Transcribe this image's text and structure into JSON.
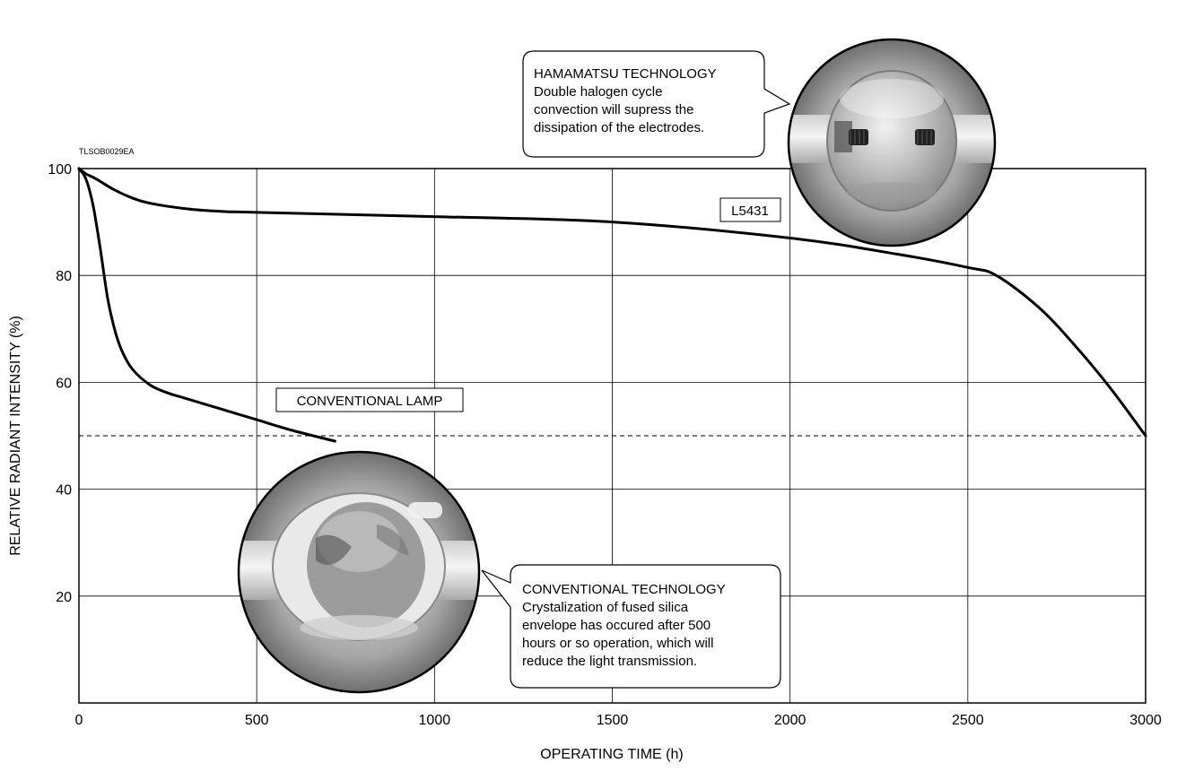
{
  "chart_data": {
    "type": "line",
    "code": "TLSOB0029EA",
    "xlabel": "OPERATING TIME (h)",
    "ylabel": "RELATIVE RADIANT INTENSITY (%)",
    "xlim": [
      0,
      3000
    ],
    "ylim": [
      0,
      100
    ],
    "x_ticks": [
      "0",
      "500",
      "1000",
      "1500",
      "2000",
      "2500",
      "3000"
    ],
    "y_ticks": [
      "20",
      "40",
      "60",
      "80",
      "100"
    ],
    "grid": true,
    "reference_line": {
      "y": 50,
      "style": "dashed"
    },
    "series": [
      {
        "name": "L5431",
        "x": [
          0,
          20,
          50,
          100,
          150,
          200,
          300,
          400,
          500,
          1000,
          1500,
          2000,
          2300,
          2500,
          2580,
          2700,
          2800,
          2900,
          3000
        ],
        "y": [
          100,
          99,
          98,
          96,
          94.5,
          93.5,
          92.5,
          92,
          91.8,
          91,
          90,
          87,
          84,
          81.5,
          80,
          74,
          67,
          59,
          50
        ]
      },
      {
        "name": "CONVENTIONAL LAMP",
        "x": [
          0,
          20,
          40,
          60,
          80,
          100,
          120,
          150,
          200,
          250,
          300,
          400,
          500,
          600,
          720
        ],
        "y": [
          100,
          98,
          93,
          85,
          76,
          70,
          66,
          62.5,
          59.5,
          58,
          57,
          55,
          53,
          51,
          49
        ]
      }
    ],
    "annotations": {
      "hamamatsu": [
        "HAMAMATSU TECHNOLOGY",
        "Double halogen cycle",
        "convection will supress the",
        "dissipation of the electrodes."
      ],
      "conventional": [
        "CONVENTIONAL TECHNOLOGY",
        "Crystalization of fused silica",
        "envelope has occured after 500",
        "hours or so operation, which will",
        "reduce the light transmission."
      ]
    }
  }
}
